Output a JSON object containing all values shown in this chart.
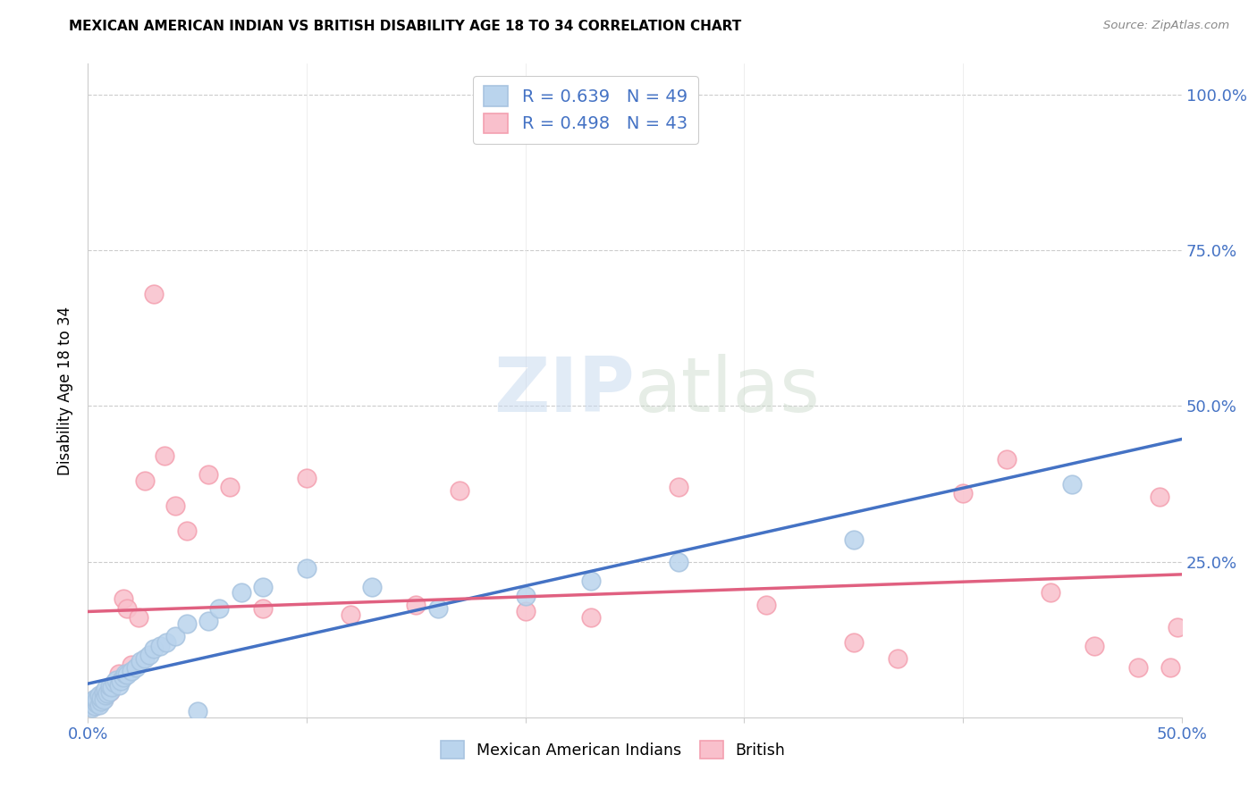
{
  "title": "MEXICAN AMERICAN INDIAN VS BRITISH DISABILITY AGE 18 TO 34 CORRELATION CHART",
  "source": "Source: ZipAtlas.com",
  "ylabel": "Disability Age 18 to 34",
  "xlim": [
    0.0,
    0.5
  ],
  "ylim": [
    0.0,
    1.05
  ],
  "blue_color": "#a8c4e0",
  "blue_fill": "#bad4ed",
  "pink_color": "#f4a0b0",
  "pink_fill": "#f9c0cc",
  "blue_line_color": "#4472c4",
  "pink_line_color": "#e06080",
  "legend_blue_label": "R = 0.639   N = 49",
  "legend_pink_label": "R = 0.498   N = 43",
  "legend_color": "#4472c4",
  "blue_scatter_x": [
    0.001,
    0.002,
    0.002,
    0.003,
    0.003,
    0.004,
    0.004,
    0.005,
    0.005,
    0.006,
    0.006,
    0.007,
    0.007,
    0.008,
    0.008,
    0.009,
    0.01,
    0.01,
    0.011,
    0.012,
    0.013,
    0.014,
    0.015,
    0.016,
    0.017,
    0.018,
    0.02,
    0.022,
    0.024,
    0.026,
    0.028,
    0.03,
    0.033,
    0.036,
    0.04,
    0.045,
    0.05,
    0.055,
    0.06,
    0.07,
    0.08,
    0.1,
    0.13,
    0.16,
    0.2,
    0.23,
    0.27,
    0.35,
    0.45
  ],
  "blue_scatter_y": [
    0.02,
    0.015,
    0.025,
    0.018,
    0.03,
    0.022,
    0.028,
    0.02,
    0.035,
    0.025,
    0.032,
    0.04,
    0.028,
    0.035,
    0.045,
    0.038,
    0.042,
    0.05,
    0.048,
    0.055,
    0.06,
    0.052,
    0.058,
    0.065,
    0.07,
    0.068,
    0.075,
    0.08,
    0.09,
    0.095,
    0.1,
    0.11,
    0.115,
    0.12,
    0.13,
    0.15,
    0.01,
    0.155,
    0.175,
    0.2,
    0.21,
    0.24,
    0.21,
    0.175,
    0.195,
    0.22,
    0.25,
    0.285,
    0.375
  ],
  "pink_scatter_x": [
    0.001,
    0.002,
    0.003,
    0.004,
    0.005,
    0.006,
    0.007,
    0.008,
    0.009,
    0.01,
    0.011,
    0.012,
    0.014,
    0.016,
    0.018,
    0.02,
    0.023,
    0.026,
    0.03,
    0.035,
    0.04,
    0.045,
    0.055,
    0.065,
    0.08,
    0.1,
    0.12,
    0.15,
    0.17,
    0.2,
    0.23,
    0.27,
    0.31,
    0.35,
    0.37,
    0.4,
    0.42,
    0.44,
    0.46,
    0.48,
    0.49,
    0.495,
    0.498
  ],
  "pink_scatter_y": [
    0.02,
    0.025,
    0.018,
    0.03,
    0.025,
    0.035,
    0.03,
    0.04,
    0.038,
    0.042,
    0.048,
    0.055,
    0.07,
    0.19,
    0.175,
    0.085,
    0.16,
    0.38,
    0.68,
    0.42,
    0.34,
    0.3,
    0.39,
    0.37,
    0.175,
    0.385,
    0.165,
    0.18,
    0.365,
    0.17,
    0.16,
    0.37,
    0.18,
    0.12,
    0.095,
    0.36,
    0.415,
    0.2,
    0.115,
    0.08,
    0.355,
    0.08,
    0.145
  ]
}
